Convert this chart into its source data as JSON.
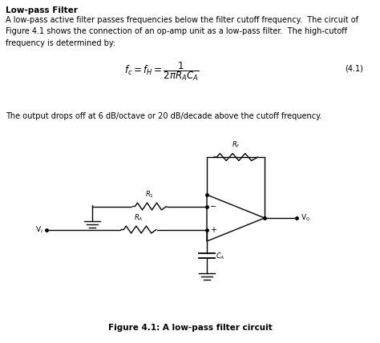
{
  "title": "Low-pass Filter",
  "para1": "A low-pass active filter passes frequencies below the filter cutoff frequency.  The circuit of\nFigure 4.1 shows the connection of an op-amp unit as a low-pass filter.  The high-cutoff\nfrequency is determined by:",
  "para2": "The output drops off at 6 dB/octave or 20 dB/decade above the cutoff frequency.",
  "fig_caption": "Figure 4.1: A low-pass filter circuit",
  "eq_number": "(4.1)",
  "bg_color": "#ffffff",
  "text_color": "#000000",
  "lw": 1.0,
  "font_size_title": 7.5,
  "font_size_body": 7.0,
  "font_size_math": 8.5,
  "font_size_caption": 7.0,
  "font_size_label": 6.0
}
